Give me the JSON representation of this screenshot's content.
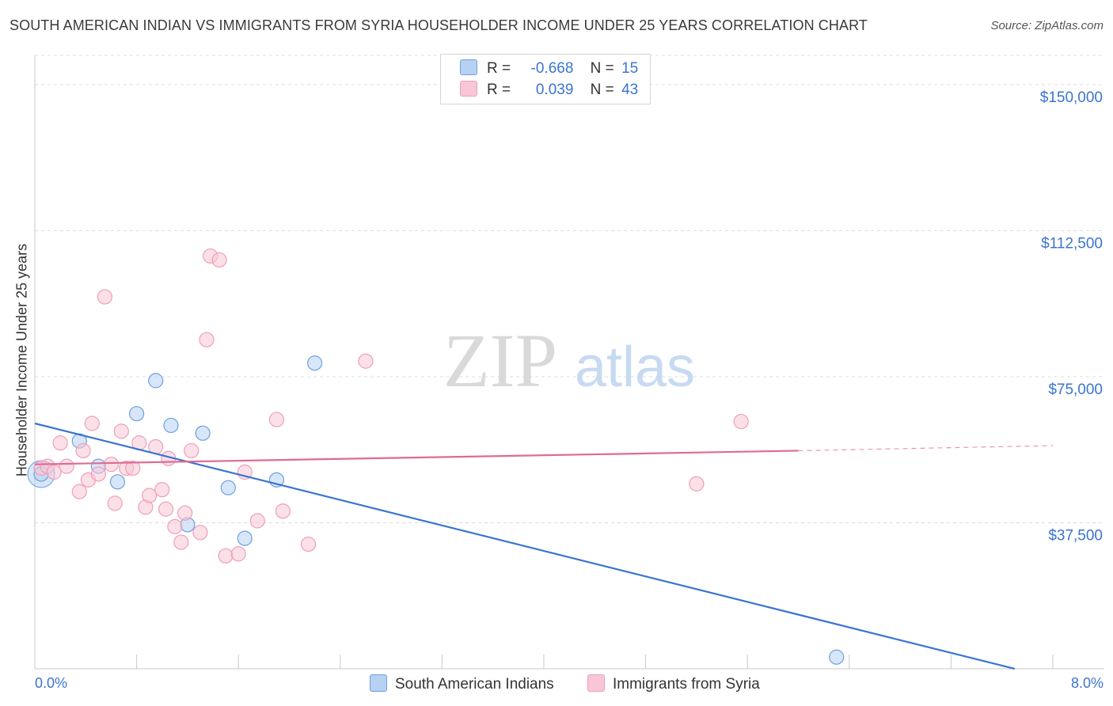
{
  "title": "SOUTH AMERICAN INDIAN VS IMMIGRANTS FROM SYRIA HOUSEHOLDER INCOME UNDER 25 YEARS CORRELATION CHART",
  "source": "Source: ZipAtlas.com",
  "watermark": {
    "zip": "ZIP",
    "atlas": "atlas"
  },
  "legend": {
    "r_label": "R =",
    "n_label": "N =",
    "rows": [
      {
        "r": "-0.668",
        "n": "15"
      },
      {
        "r": "0.039",
        "n": "43"
      }
    ]
  },
  "colors": {
    "blue": "#3b74d0",
    "blue_fill": "#b7d1f3",
    "blue_stroke": "#6f9fe0",
    "pink": "#e06a92",
    "pink_fill": "#f8c6d6",
    "pink_stroke": "#ee9fb8"
  },
  "chart_data": {
    "type": "scatter",
    "title": "SOUTH AMERICAN INDIAN VS IMMIGRANTS FROM SYRIA HOUSEHOLDER INCOME UNDER 25 YEARS CORRELATION CHART",
    "xlabel": "",
    "ylabel": "Householder Income Under 25 years",
    "xlim": [
      0,
      8
    ],
    "ylim": [
      0,
      157500
    ],
    "x_tick_labels": [
      "0.0%",
      "8.0%"
    ],
    "y_ticks": [
      37500,
      75000,
      112500,
      150000
    ],
    "y_tick_labels": [
      "$37,500",
      "$75,000",
      "$112,500",
      "$150,000"
    ],
    "grid": true,
    "legend_position": "bottom",
    "series": [
      {
        "name": "South American Indians",
        "color": "#3b74d0",
        "trend": {
          "x": [
            0.0,
            7.7
          ],
          "y": [
            63000,
            0
          ]
        },
        "points": [
          [
            0.05,
            50000
          ],
          [
            0.35,
            58500
          ],
          [
            0.5,
            52000
          ],
          [
            0.65,
            48000
          ],
          [
            0.8,
            65500
          ],
          [
            0.95,
            74000
          ],
          [
            1.07,
            62500
          ],
          [
            1.2,
            37000
          ],
          [
            1.32,
            60500
          ],
          [
            1.52,
            46500
          ],
          [
            1.65,
            33500
          ],
          [
            1.9,
            48500
          ],
          [
            2.2,
            78500
          ],
          [
            6.3,
            3000
          ]
        ]
      },
      {
        "name": "Immigrants from Syria",
        "color": "#e06a92",
        "trend": {
          "x": [
            0.0,
            6.0
          ],
          "y": [
            52500,
            56000
          ]
        },
        "trend_dashed": {
          "x": [
            6.0,
            8.0
          ],
          "y": [
            56000,
            57300
          ]
        },
        "points": [
          [
            0.05,
            51500
          ],
          [
            0.1,
            52000
          ],
          [
            0.15,
            50500
          ],
          [
            0.2,
            58000
          ],
          [
            0.25,
            52000
          ],
          [
            0.35,
            45500
          ],
          [
            0.38,
            56000
          ],
          [
            0.42,
            48500
          ],
          [
            0.45,
            63000
          ],
          [
            0.5,
            50000
          ],
          [
            0.55,
            95500
          ],
          [
            0.6,
            52500
          ],
          [
            0.63,
            42500
          ],
          [
            0.68,
            61000
          ],
          [
            0.72,
            51500
          ],
          [
            0.77,
            51500
          ],
          [
            0.82,
            58000
          ],
          [
            0.87,
            41500
          ],
          [
            0.9,
            44500
          ],
          [
            0.95,
            57000
          ],
          [
            1.0,
            46000
          ],
          [
            1.03,
            41000
          ],
          [
            1.05,
            54000
          ],
          [
            1.1,
            36500
          ],
          [
            1.15,
            32500
          ],
          [
            1.18,
            40000
          ],
          [
            1.23,
            56000
          ],
          [
            1.3,
            35000
          ],
          [
            1.35,
            84500
          ],
          [
            1.38,
            106000
          ],
          [
            1.45,
            105000
          ],
          [
            1.5,
            29000
          ],
          [
            1.6,
            29500
          ],
          [
            1.65,
            50500
          ],
          [
            1.75,
            38000
          ],
          [
            1.9,
            64000
          ],
          [
            1.95,
            40500
          ],
          [
            2.15,
            32000
          ],
          [
            2.6,
            79000
          ],
          [
            5.2,
            47500
          ],
          [
            5.55,
            63500
          ]
        ]
      }
    ]
  }
}
